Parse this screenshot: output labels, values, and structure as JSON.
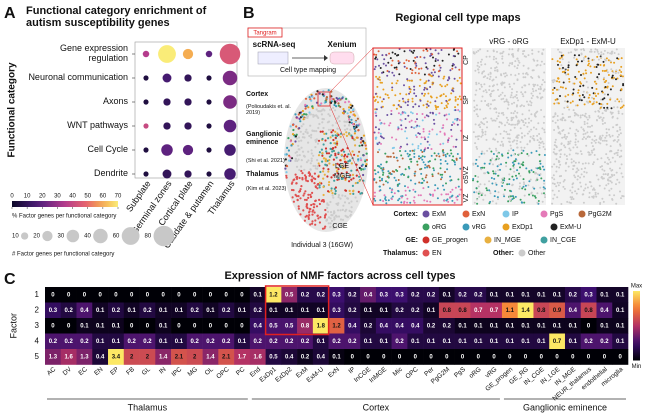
{
  "chart_data": [
    {
      "type": "dot",
      "label": "A",
      "title": "Functional category enrichment of autism susceptibility genes",
      "ylabel": "Functional category",
      "categories": [
        "Gene expression regulation",
        "Neuronal communication",
        "Axons",
        "WNT pathways",
        "Cell Cycle",
        "Dendrite"
      ],
      "columns": [
        "Subplate",
        "Germinal zones",
        "Cortical plate",
        "Caudate & putamen",
        "Thalamus"
      ],
      "values": [
        [
          35,
          70,
          60,
          20,
          45
        ],
        [
          5,
          15,
          10,
          5,
          25
        ],
        [
          5,
          10,
          10,
          5,
          25
        ],
        [
          40,
          10,
          10,
          5,
          20
        ],
        [
          5,
          20,
          20,
          5,
          15
        ],
        [
          5,
          10,
          10,
          5,
          15
        ]
      ],
      "sizes": [
        [
          8,
          60,
          20,
          8,
          80
        ],
        [
          5,
          15,
          10,
          5,
          40
        ],
        [
          5,
          10,
          10,
          5,
          35
        ],
        [
          5,
          10,
          10,
          5,
          30
        ],
        [
          5,
          25,
          20,
          5,
          25
        ],
        [
          5,
          15,
          10,
          5,
          25
        ]
      ],
      "colorbar": {
        "label": "% Factor genes per functional category",
        "lim": [
          0,
          70
        ],
        "ticks": [
          0,
          10,
          20,
          30,
          40,
          50,
          60,
          70
        ]
      },
      "size_legend": {
        "label": "# Factor genes per functional category",
        "values": [
          10,
          20,
          30,
          40,
          60,
          80
        ]
      }
    },
    {
      "type": "heatmap",
      "label": "C",
      "title": "Expression of NMF factors across cell types",
      "ylabel": "Factor",
      "rows": [
        1,
        2,
        3,
        4,
        5
      ],
      "groups": [
        {
          "name": "Thalamus",
          "categories": [
            "AC",
            "DV",
            "EC",
            "EN",
            "EP",
            "FB",
            "GL",
            "IN",
            "IPC",
            "MG",
            "OL",
            "OPC",
            "PC"
          ]
        },
        {
          "name": "Cortex",
          "categories": [
            "End",
            "ExDp1",
            "ExDp2",
            "ExM",
            "ExM-U",
            "ExN",
            "IP",
            "InCGE",
            "InMGE",
            "Mic",
            "OPC",
            "Per",
            "PgG2M",
            "PgS",
            "oRG",
            "vRG"
          ]
        },
        {
          "name": "Ganglionic eminence",
          "categories": [
            "GE_progen",
            "GE_RG",
            "IN_CGE",
            "IN_LGE",
            "IN_MGE",
            "NEUR_thalamus",
            "endothelial",
            "microglia"
          ]
        }
      ],
      "values": [
        [
          0,
          0,
          0,
          0,
          0,
          0,
          0,
          0,
          0,
          0,
          0,
          0,
          0,
          0.1,
          1.2,
          0.5,
          0.2,
          0.2,
          0.3,
          0.2,
          0.4,
          0.3,
          0.3,
          0.2,
          0.2,
          0.1,
          0.2,
          0.2,
          0.1,
          0.1,
          0.1,
          0.1,
          0.1,
          0.2,
          0.3,
          0.1,
          0.1
        ],
        [
          0.3,
          0.2,
          0.4,
          0.1,
          0.2,
          0.1,
          0.2,
          0.1,
          0.1,
          0.2,
          0.1,
          0.2,
          0.1,
          0.2,
          0.1,
          0.1,
          0.1,
          0.1,
          0.3,
          0.2,
          0.1,
          0.1,
          0.2,
          0.2,
          0.1,
          0.8,
          0.8,
          0.7,
          0.7,
          1.1,
          1.4,
          0.8,
          0.9,
          0.4,
          0.8,
          0.4,
          0.1
        ],
        [
          0,
          0,
          0.1,
          0.1,
          0.1,
          0,
          0,
          0.1,
          0,
          0,
          0,
          0,
          0,
          0.4,
          0.5,
          0.5,
          0.8,
          1.8,
          1.2,
          0.4,
          0.2,
          0.4,
          0.4,
          0.4,
          0.2,
          0.2,
          0.1,
          0.1,
          0.1,
          0.1,
          0.1,
          0.1,
          0.1,
          0.1,
          0,
          0.1,
          0.1
        ],
        [
          0.2,
          0.2,
          0.2,
          0.1,
          0.1,
          0.2,
          0.2,
          0.1,
          0.1,
          0.2,
          0.2,
          0.2,
          0.1,
          0.2,
          0.2,
          0.2,
          0.2,
          0.1,
          0.2,
          0.2,
          0.1,
          0.1,
          0.2,
          0.1,
          0.1,
          0.1,
          0.1,
          0.1,
          0.1,
          0.1,
          0.1,
          0.1,
          0.7,
          0.1,
          0.2,
          0.2,
          0.1
        ],
        [
          1.3,
          1.6,
          1.3,
          0.4,
          3.4,
          2,
          2,
          1.4,
          2.1,
          2,
          1.4,
          2.1,
          1.7,
          1.6,
          0.5,
          0.4,
          0.2,
          0.4,
          0.1,
          0,
          0,
          0,
          0,
          0,
          0,
          0,
          0,
          0,
          0,
          0,
          0,
          0,
          0,
          0,
          0,
          0,
          0
        ]
      ],
      "colorbar": {
        "max": "Max",
        "min": "Min"
      }
    }
  ],
  "panel_b": {
    "label": "B",
    "title": "Regional cell type maps",
    "tangram": "Tangram",
    "source": "scRNA-seq",
    "target": "Xenium",
    "mapping": "Cell type mapping",
    "regions": [
      {
        "name": "Cortex",
        "ref": "(Polioudakis et. al. 2019)"
      },
      {
        "name": "Ganglionic eminence",
        "ref": "(Shi et al. 2021)"
      },
      {
        "name": "Thalamus",
        "ref": "(Kim et al. 2023)"
      }
    ],
    "structures": [
      "LGE",
      "MGE",
      "CGE"
    ],
    "caption": "Individual 3 (16GW)",
    "panels": [
      "vRG - oRG",
      "ExDp1 - ExM-U"
    ],
    "layers": [
      "CP",
      "SP",
      "IZ",
      "oSVZ",
      "VZ"
    ],
    "legend": [
      {
        "group": "Cortex:",
        "items": [
          {
            "name": "ExM",
            "color": "#6a4fa0"
          },
          {
            "name": "ExN",
            "color": "#e0603a"
          },
          {
            "name": "IP",
            "color": "#7ec8e8"
          },
          {
            "name": "PgS",
            "color": "#e47ab8"
          },
          {
            "name": "PgG2M",
            "color": "#b8683a"
          },
          {
            "name": "oRG",
            "color": "#3aa060"
          },
          {
            "name": "vRG",
            "color": "#3a9ab8"
          },
          {
            "name": "ExDp1",
            "color": "#e8a020"
          },
          {
            "name": "ExM-U",
            "color": "#222222"
          }
        ]
      },
      {
        "group": "GE:",
        "items": [
          {
            "name": "GE_progen",
            "color": "#d0302a"
          },
          {
            "name": "IN_MGE",
            "color": "#e8b040"
          },
          {
            "name": "IN_CGE",
            "color": "#40a0a0"
          }
        ]
      },
      {
        "group": "Thalamus:",
        "items": [
          {
            "name": "EN",
            "color": "#e05050"
          }
        ]
      },
      {
        "group": "Other:",
        "items": [
          {
            "name": "Other",
            "color": "#cccccc"
          }
        ]
      }
    ]
  }
}
